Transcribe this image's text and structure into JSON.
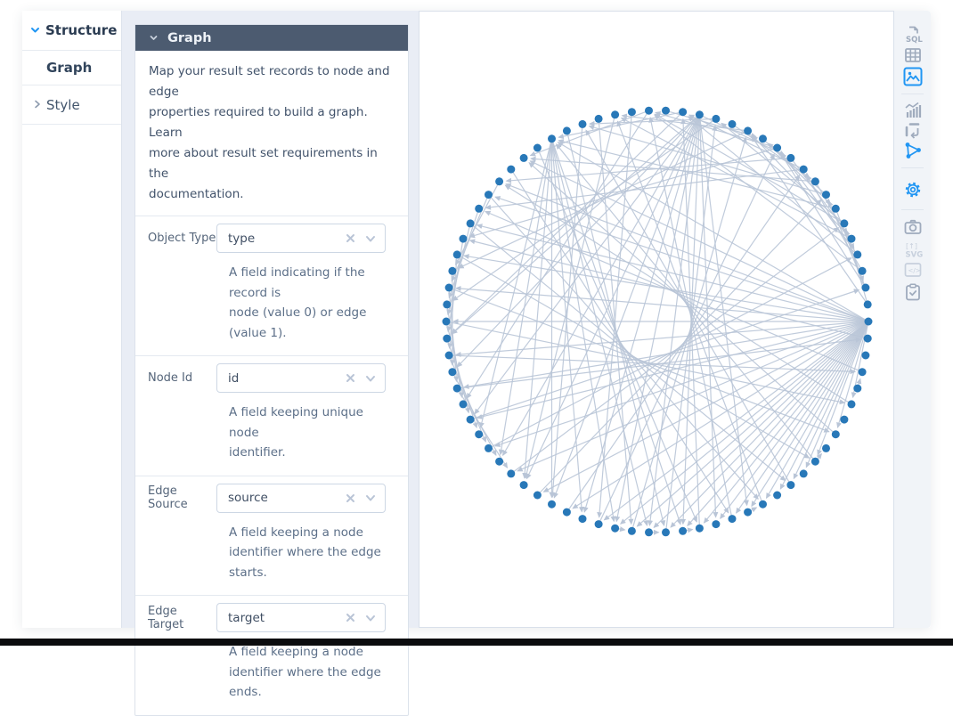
{
  "sidebar": {
    "structure_label": "Structure",
    "items": [
      {
        "label": "Graph",
        "active": true
      },
      {
        "label": "Style",
        "active": false
      }
    ]
  },
  "panel": {
    "title": "Graph",
    "description": "Map your result set records to node and edge\nproperties required to build a graph. Learn\nmore about result set requirements in the\ndocumentation.",
    "fields": [
      {
        "label": "Object Type",
        "value": "type",
        "help": "A field indicating if the record is\nnode (value 0) or edge\n(value 1)."
      },
      {
        "label": "Node Id",
        "value": "id",
        "help": "A field keeping unique node\nidentifier."
      },
      {
        "label": "Edge Source",
        "value": "source",
        "help": "A field keeping a node\nidentifier where the edge\nstarts."
      },
      {
        "label": "Edge Target",
        "value": "target",
        "help": "A field keeping a node\nidentifier where the edge ends."
      }
    ]
  },
  "toolbar": {
    "sql_text": "SQL",
    "svg_line1": "[↑]",
    "svg_line2": "SVG",
    "code_text": "</>",
    "icons": [
      {
        "name": "sql-icon",
        "state": "default"
      },
      {
        "name": "table-icon",
        "state": "default"
      },
      {
        "name": "image-icon",
        "state": "active"
      },
      {
        "name": "bar-chart-icon",
        "state": "default"
      },
      {
        "name": "pivot-icon",
        "state": "default"
      },
      {
        "name": "graph-icon",
        "state": "active"
      },
      {
        "name": "gear-icon",
        "state": "active"
      },
      {
        "name": "camera-icon",
        "state": "default"
      },
      {
        "name": "svg-export-icon",
        "state": "disabled"
      },
      {
        "name": "embed-code-icon",
        "state": "disabled"
      },
      {
        "name": "clipboard-icon",
        "state": "default"
      }
    ]
  },
  "colors": {
    "accent_blue": "#2196f3",
    "header_bg": "#4c5b70",
    "mid_bg": "#e9edf5",
    "icon_gray": "#9fabbd",
    "icon_disabled": "#c7d0dd",
    "node_color": "#2878b8",
    "edge_color": "#b9c5d7"
  },
  "chart_data": {
    "type": "network-circular",
    "title": "",
    "node_count": 78,
    "node_radius": 4.5,
    "node_color": "#2878b8",
    "edge_color": "#b9c5d7",
    "directed": true,
    "layout": "circle",
    "edges": [
      [
        0,
        26
      ],
      [
        0,
        28
      ],
      [
        0,
        30
      ],
      [
        0,
        31
      ],
      [
        0,
        33
      ],
      [
        0,
        35
      ],
      [
        0,
        37
      ],
      [
        0,
        39
      ],
      [
        0,
        41
      ],
      [
        0,
        43
      ],
      [
        0,
        45
      ],
      [
        0,
        47
      ],
      [
        0,
        49
      ],
      [
        0,
        51
      ],
      [
        0,
        53
      ],
      [
        0,
        55
      ],
      [
        0,
        56
      ],
      [
        0,
        57
      ],
      [
        0,
        58
      ],
      [
        0,
        59
      ],
      [
        0,
        60
      ],
      [
        0,
        61
      ],
      [
        0,
        62
      ],
      [
        0,
        63
      ],
      [
        0,
        64
      ],
      [
        0,
        65
      ],
      [
        0,
        66
      ],
      [
        0,
        67
      ],
      [
        0,
        68
      ],
      [
        0,
        69
      ],
      [
        0,
        71
      ],
      [
        0,
        73
      ],
      [
        1,
        6
      ],
      [
        2,
        8
      ],
      [
        3,
        10
      ],
      [
        4,
        12
      ],
      [
        5,
        14
      ],
      [
        6,
        16
      ],
      [
        7,
        2
      ],
      [
        8,
        13
      ],
      [
        9,
        4
      ],
      [
        10,
        18
      ],
      [
        11,
        5
      ],
      [
        12,
        20
      ],
      [
        13,
        7
      ],
      [
        14,
        22
      ],
      [
        15,
        9
      ],
      [
        16,
        24
      ],
      [
        17,
        11
      ],
      [
        18,
        26
      ],
      [
        19,
        13
      ],
      [
        20,
        28
      ],
      [
        2,
        12
      ],
      [
        4,
        18
      ],
      [
        6,
        20
      ],
      [
        8,
        24
      ],
      [
        1,
        14
      ],
      [
        3,
        20
      ],
      [
        5,
        22
      ],
      [
        7,
        26
      ],
      [
        9,
        28
      ],
      [
        11,
        30
      ],
      [
        17,
        40
      ],
      [
        17,
        42
      ],
      [
        17,
        45
      ],
      [
        17,
        48
      ],
      [
        17,
        50
      ],
      [
        17,
        52
      ],
      [
        17,
        54
      ],
      [
        17,
        56
      ],
      [
        17,
        58
      ],
      [
        17,
        60
      ],
      [
        17,
        62
      ],
      [
        17,
        64
      ],
      [
        26,
        46
      ],
      [
        26,
        48
      ],
      [
        26,
        50
      ],
      [
        26,
        52
      ],
      [
        26,
        54
      ],
      [
        26,
        56
      ],
      [
        26,
        58
      ],
      [
        26,
        60
      ],
      [
        30,
        36
      ],
      [
        32,
        38
      ],
      [
        34,
        40
      ],
      [
        36,
        42
      ],
      [
        38,
        44
      ],
      [
        40,
        46
      ],
      [
        42,
        48
      ],
      [
        31,
        37
      ],
      [
        33,
        39
      ],
      [
        35,
        41
      ],
      [
        37,
        43
      ],
      [
        39,
        45
      ],
      [
        41,
        47
      ],
      [
        43,
        49
      ],
      [
        21,
        55
      ],
      [
        23,
        57
      ],
      [
        25,
        59
      ],
      [
        27,
        61
      ],
      [
        29,
        63
      ],
      [
        31,
        65
      ],
      [
        33,
        67
      ],
      [
        35,
        69
      ],
      [
        37,
        71
      ],
      [
        39,
        73
      ],
      [
        41,
        75
      ],
      [
        43,
        77
      ],
      [
        45,
        2
      ],
      [
        47,
        4
      ],
      [
        49,
        6
      ],
      [
        51,
        8
      ],
      [
        53,
        10
      ],
      [
        55,
        12
      ],
      [
        57,
        14
      ],
      [
        59,
        16
      ],
      [
        61,
        18
      ],
      [
        63,
        20
      ],
      [
        65,
        22
      ],
      [
        67,
        24
      ],
      [
        69,
        26
      ],
      [
        71,
        28
      ],
      [
        73,
        30
      ],
      [
        75,
        32
      ],
      [
        77,
        34
      ],
      [
        22,
        50
      ],
      [
        24,
        52
      ],
      [
        20,
        44
      ],
      [
        18,
        40
      ],
      [
        16,
        38
      ],
      [
        14,
        36
      ],
      [
        12,
        34
      ],
      [
        10,
        32
      ],
      [
        56,
        57
      ],
      [
        58,
        59
      ],
      [
        60,
        61
      ],
      [
        64,
        65
      ],
      [
        69,
        70
      ],
      [
        74,
        75
      ]
    ]
  }
}
